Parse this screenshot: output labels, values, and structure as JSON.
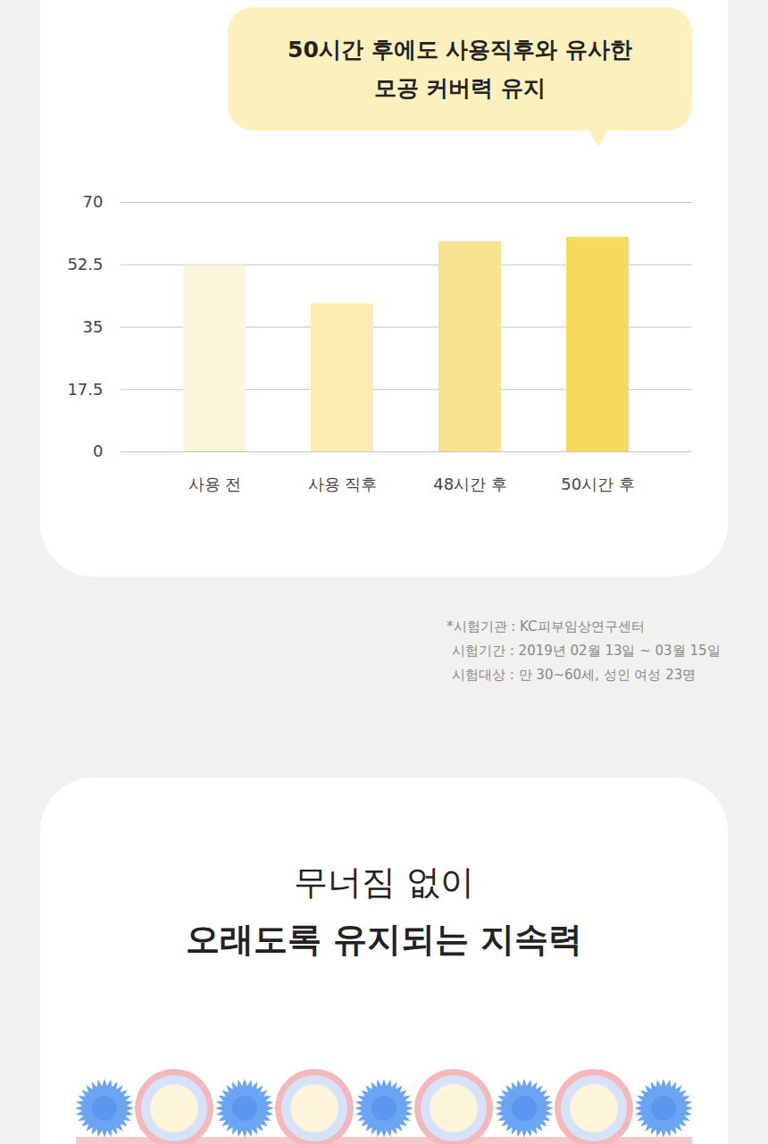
{
  "chart_data": {
    "type": "bar",
    "title": [
      "50시간 후에도 사용직후와 유사한",
      "모공 커버력 유지"
    ],
    "categories": [
      "사용 전",
      "사용 직후",
      "48시간 후",
      "50시간 후"
    ],
    "values": [
      52.3,
      41.6,
      59.0,
      60.2
    ],
    "colors": [
      "#fdf6dc",
      "#fcecb2",
      "#f9e28f",
      "#f5da5c"
    ],
    "ylim": [
      0,
      70
    ],
    "yticks": [
      0,
      17.5,
      35,
      52.5,
      70
    ],
    "grid": true,
    "annotations": [
      "*시험기관 : KC피부임상연구센터",
      "시험기간 : 2019년 02월 13일 ~ 03월 15일",
      "시험대상 : 만 30~60세, 성인 여성 23명"
    ]
  },
  "section_heading": [
    "무너짐 없이",
    "오래도록 유지되는 지속력"
  ]
}
